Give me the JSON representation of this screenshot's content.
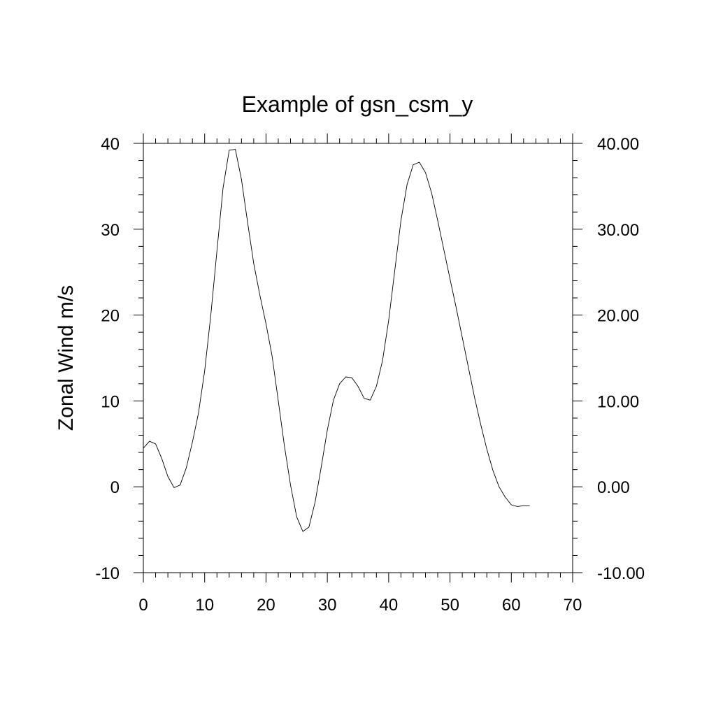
{
  "chart_data": {
    "type": "line",
    "title": "Example of gsn_csm_y",
    "xlabel": "",
    "ylabel": "Zonal Wind m/s",
    "xlim": [
      0,
      70
    ],
    "ylim": [
      -10,
      40
    ],
    "x_ticks": [
      0,
      10,
      20,
      30,
      40,
      50,
      60,
      70
    ],
    "x_tick_labels": [
      "0",
      "10",
      "20",
      "30",
      "40",
      "50",
      "60",
      "70"
    ],
    "y_ticks": [
      -10,
      0,
      10,
      20,
      30,
      40
    ],
    "y_tick_labels_left": [
      "-10",
      "0",
      "10",
      "20",
      "30",
      "40"
    ],
    "y_tick_labels_right": [
      "-10.00",
      "0.00",
      "10.00",
      "20.00",
      "30.00",
      "40.00"
    ],
    "grid": false,
    "legend": "none",
    "line_color": "#000000",
    "series": [
      {
        "x": [
          0,
          1,
          2,
          3,
          4,
          5,
          6,
          7,
          8,
          9,
          10,
          11,
          12,
          13,
          14,
          15,
          16,
          17,
          18,
          19,
          20,
          21,
          22,
          23,
          24,
          25,
          26,
          27,
          28,
          29,
          30,
          31,
          32,
          33,
          34,
          35,
          36,
          37,
          38,
          39,
          40,
          41,
          42,
          43,
          44,
          45,
          46,
          47,
          48,
          49,
          50,
          51,
          52,
          53,
          54,
          55,
          56,
          57,
          58,
          59,
          60,
          61,
          62,
          63
        ],
        "values": [
          4.5,
          5.3,
          5.0,
          3.3,
          1.2,
          -0.1,
          0.2,
          2.2,
          5.2,
          8.6,
          13.5,
          20.0,
          27.5,
          34.8,
          39.2,
          39.3,
          35.8,
          30.8,
          26.0,
          22.3,
          19.0,
          15.2,
          10.0,
          4.8,
          0.2,
          -3.5,
          -5.2,
          -4.7,
          -1.8,
          2.3,
          6.6,
          10.1,
          12.0,
          12.8,
          12.7,
          11.7,
          10.3,
          10.1,
          11.7,
          14.7,
          19.4,
          25.2,
          31.0,
          35.2,
          37.5,
          37.8,
          36.6,
          34.2,
          31.0,
          27.6,
          24.2,
          20.9,
          17.4,
          13.9,
          10.4,
          7.3,
          4.4,
          1.9,
          0.0,
          -1.2,
          -2.1,
          -2.3,
          -2.2,
          -2.2
        ]
      }
    ]
  }
}
